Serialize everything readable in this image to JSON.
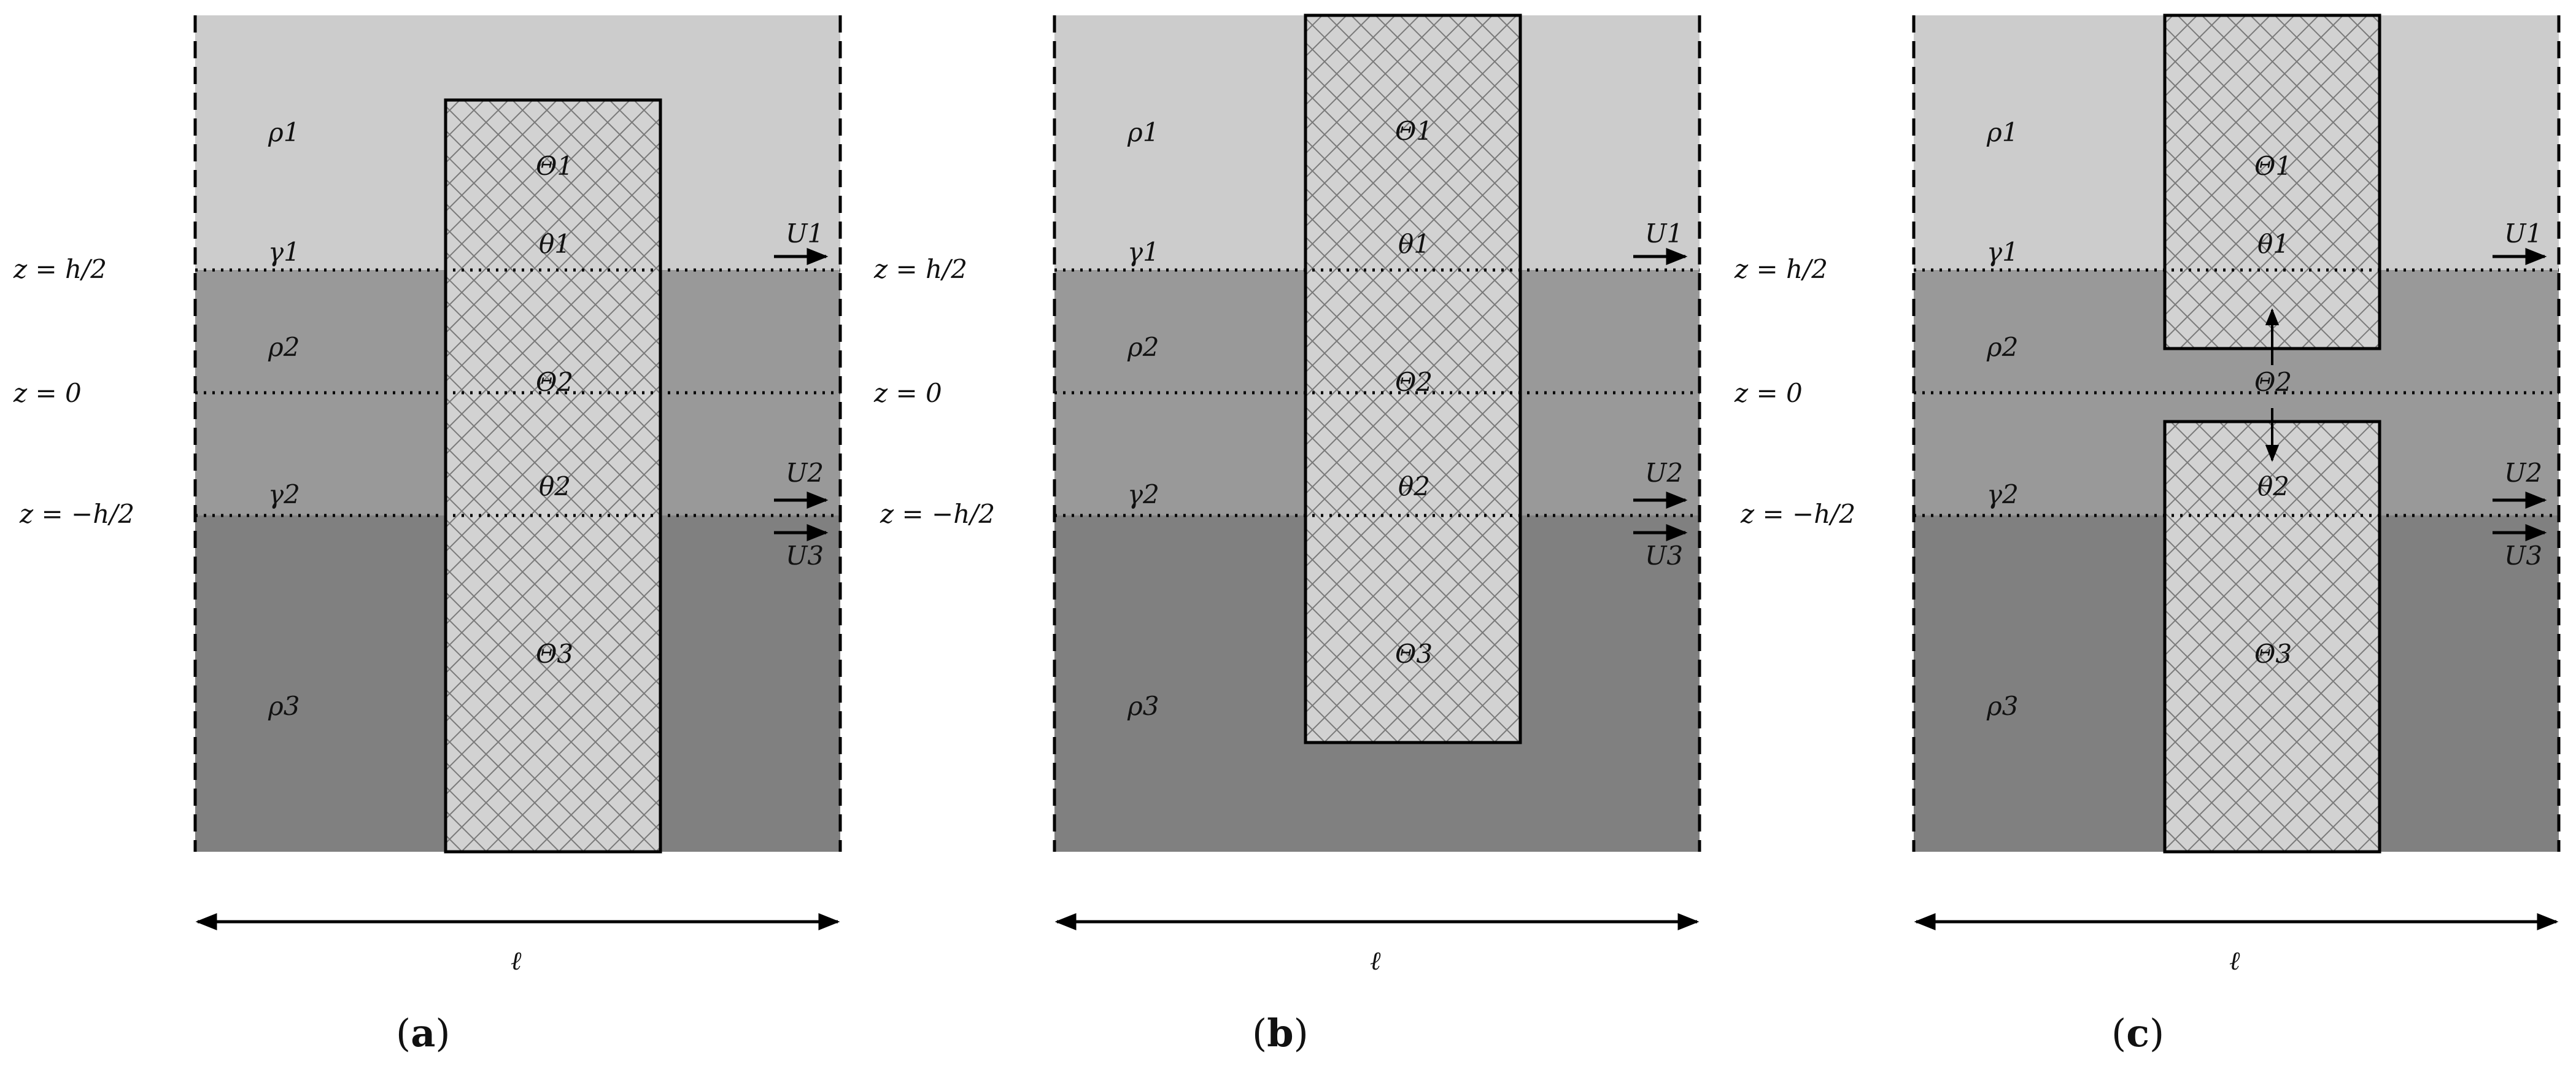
{
  "panels": [
    {
      "caption_open": "(",
      "caption_letter": "a",
      "caption_close": ")",
      "layer_labels": {
        "rho1": "ρ1",
        "rho2": "ρ2",
        "rho3": "ρ3",
        "gamma1": "γ1",
        "gamma2": "γ2"
      },
      "interface_labels": {
        "z_top": "z = h/2",
        "z_mid": "z = 0",
        "z_bot": "z = −h/2"
      },
      "velocity_labels": {
        "u1": "U1",
        "u2": "U2",
        "u3": "U3"
      },
      "column_labels": {
        "Theta1": "Θ1",
        "theta1": "θ1",
        "Theta2": "Θ2",
        "theta2": "θ2",
        "Theta3": "Θ3"
      },
      "width_label": "ℓ"
    },
    {
      "caption_open": "(",
      "caption_letter": "b",
      "caption_close": ")",
      "layer_labels": {
        "rho1": "ρ1",
        "rho2": "ρ2",
        "rho3": "ρ3",
        "gamma1": "γ1",
        "gamma2": "γ2"
      },
      "interface_labels": {
        "z_top": "z = h/2",
        "z_mid": "z = 0",
        "z_bot": "z = −h/2"
      },
      "velocity_labels": {
        "u1": "U1",
        "u2": "U2",
        "u3": "U3"
      },
      "column_labels": {
        "Theta1": "Θ1",
        "theta1": "θ1",
        "Theta2": "Θ2",
        "theta2": "θ2",
        "Theta3": "Θ3"
      },
      "width_label": "ℓ"
    },
    {
      "caption_open": "(",
      "caption_letter": "c",
      "caption_close": ")",
      "layer_labels": {
        "rho1": "ρ1",
        "rho2": "ρ2",
        "rho3": "ρ3",
        "gamma1": "γ1",
        "gamma2": "γ2"
      },
      "interface_labels": {
        "z_top": "z = h/2",
        "z_mid": "z = 0",
        "z_bot": "z = −h/2"
      },
      "velocity_labels": {
        "u1": "U1",
        "u2": "U2",
        "u3": "U3"
      },
      "column_labels": {
        "Theta1": "Θ1",
        "theta1": "θ1",
        "Theta2": "Θ2",
        "theta2": "θ2",
        "Theta3": "Θ3"
      },
      "width_label": "ℓ"
    }
  ],
  "colors": {
    "layer1": "#cccccc",
    "layer2": "#999999",
    "layer3": "#808080",
    "column_fill": "#d2d2d2",
    "hatch": "#7a7a7a",
    "line": "#000000"
  }
}
